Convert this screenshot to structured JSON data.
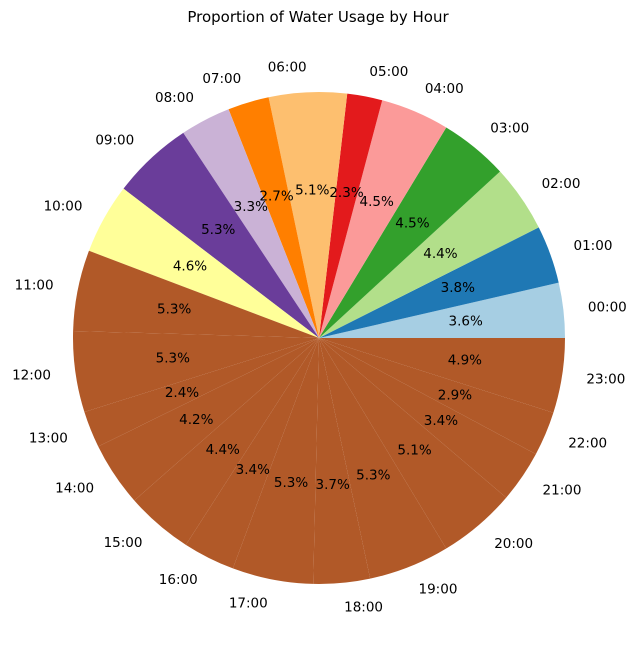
{
  "chart_data": {
    "type": "pie",
    "title": "Proportion of Water Usage by Hour",
    "start_angle_deg": 0,
    "direction": "counterclockwise",
    "slices": [
      {
        "label": "00:00",
        "value": 3.6,
        "pct_label": "3.6%",
        "color": "#a6cee3"
      },
      {
        "label": "01:00",
        "value": 3.8,
        "pct_label": "3.8%",
        "color": "#1f78b4"
      },
      {
        "label": "02:00",
        "value": 4.4,
        "pct_label": "4.4%",
        "color": "#b2df8a"
      },
      {
        "label": "03:00",
        "value": 4.5,
        "pct_label": "4.5%",
        "color": "#33a02c"
      },
      {
        "label": "04:00",
        "value": 4.5,
        "pct_label": "4.5%",
        "color": "#fb9a99"
      },
      {
        "label": "05:00",
        "value": 2.3,
        "pct_label": "2.3%",
        "color": "#e31a1c"
      },
      {
        "label": "06:00",
        "value": 5.1,
        "pct_label": "5.1%",
        "color": "#fdbf6f"
      },
      {
        "label": "07:00",
        "value": 2.7,
        "pct_label": "2.7%",
        "color": "#ff7f00"
      },
      {
        "label": "08:00",
        "value": 3.3,
        "pct_label": "3.3%",
        "color": "#cab2d6"
      },
      {
        "label": "09:00",
        "value": 5.3,
        "pct_label": "5.3%",
        "color": "#6a3d9a"
      },
      {
        "label": "10:00",
        "value": 4.6,
        "pct_label": "4.6%",
        "color": "#ffff99"
      },
      {
        "label": "11:00",
        "value": 5.3,
        "pct_label": "5.3%",
        "color": "#b15928"
      },
      {
        "label": "12:00",
        "value": 5.3,
        "pct_label": "5.3%",
        "color": "#b15928"
      },
      {
        "label": "13:00",
        "value": 2.4,
        "pct_label": "2.4%",
        "color": "#b15928"
      },
      {
        "label": "14:00",
        "value": 4.2,
        "pct_label": "4.2%",
        "color": "#b15928"
      },
      {
        "label": "15:00",
        "value": 4.4,
        "pct_label": "4.4%",
        "color": "#b15928"
      },
      {
        "label": "16:00",
        "value": 3.4,
        "pct_label": "3.4%",
        "color": "#b15928"
      },
      {
        "label": "17:00",
        "value": 5.3,
        "pct_label": "5.3%",
        "color": "#b15928"
      },
      {
        "label": "18:00",
        "value": 3.7,
        "pct_label": "3.7%",
        "color": "#b15928"
      },
      {
        "label": "19:00",
        "value": 5.3,
        "pct_label": "5.3%",
        "color": "#b15928"
      },
      {
        "label": "20:00",
        "value": 5.1,
        "pct_label": "5.1%",
        "color": "#b15928"
      },
      {
        "label": "21:00",
        "value": 3.4,
        "pct_label": "3.4%",
        "color": "#b15928"
      },
      {
        "label": "22:00",
        "value": 2.9,
        "pct_label": "2.9%",
        "color": "#b15928"
      },
      {
        "label": "23:00",
        "value": 4.9,
        "pct_label": "4.9%",
        "color": "#b15928"
      }
    ]
  }
}
